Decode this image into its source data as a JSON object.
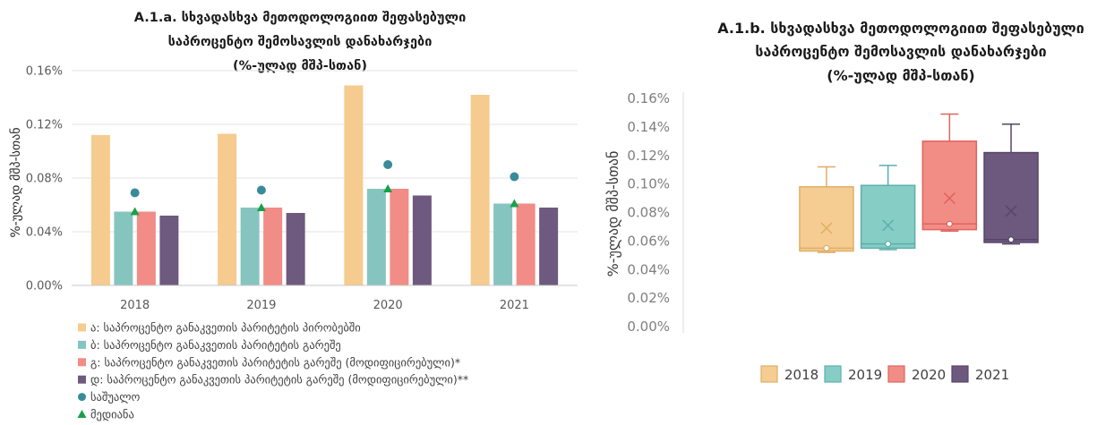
{
  "chart_data": [
    {
      "type": "bar",
      "title": [
        "A.1.a. სხვადასხვა მეთოდოლოგიით შეფასებული",
        "საპროცენტო შემოსავლის დანახარჯები",
        "(%-ულად მშპ-სთან)"
      ],
      "ylabel": "%-ულად მშპ-სთან",
      "ylim": [
        0,
        0.16
      ],
      "yticks": [
        {
          "value": 0,
          "label": "0.00%"
        },
        {
          "value": 0.04,
          "label": "0.04%"
        },
        {
          "value": 0.08,
          "label": "0.08%"
        },
        {
          "value": 0.12,
          "label": "0.12%"
        },
        {
          "value": 0.16,
          "label": "0.16%"
        }
      ],
      "grid": true,
      "legend": "bottom-left",
      "categories": [
        "2018",
        "2019",
        "2020",
        "2021"
      ],
      "series": [
        {
          "name": "ა: საპროცენტო განაკვეთის პარიტეტის პირობებში",
          "color": "#f5cb8f",
          "values": [
            0.112,
            0.113,
            0.149,
            0.142
          ]
        },
        {
          "name": "ბ: საპროცენტო განაკვეთის პარიტეტის გარეშე",
          "color": "#86c5bf",
          "values": [
            0.055,
            0.058,
            0.072,
            0.061
          ]
        },
        {
          "name": "გ: საპროცენტო განაკვეთის პარიტეტის გარეშე (მოდიფიცირებული)*",
          "color": "#f28c86",
          "values": [
            0.055,
            0.058,
            0.072,
            0.061
          ]
        },
        {
          "name": "დ: საპროცენტო განაკვეთის პარიტეტის გარეშე (მოდიფიცირებული)**",
          "color": "#6e5a7e",
          "values": [
            0.052,
            0.054,
            0.067,
            0.058
          ]
        }
      ],
      "markers": [
        {
          "name": "საშუალო",
          "shape": "circle",
          "color": "#3a8b99",
          "values": [
            0.069,
            0.071,
            0.09,
            0.081
          ]
        },
        {
          "name": "მედიანა",
          "shape": "triangle",
          "color": "#18a14b",
          "values": [
            0.055,
            0.058,
            0.072,
            0.061
          ]
        }
      ]
    },
    {
      "type": "box",
      "title": [
        "A.1.b. სხვადასხვა მეთოდოლოგიით შეფასებული",
        "საპროცენტო შემოსავლის დანახარჯები",
        "(%-ულად მშპ-სთან)"
      ],
      "ylabel": "%-ულად მშპ-სთან",
      "ylim": [
        0,
        0.16
      ],
      "yticks": [
        {
          "value": 0,
          "label": "0.00%"
        },
        {
          "value": 0.02,
          "label": "0.02%"
        },
        {
          "value": 0.04,
          "label": "0.04%"
        },
        {
          "value": 0.06,
          "label": "0.06%"
        },
        {
          "value": 0.08,
          "label": "0.08%"
        },
        {
          "value": 0.1,
          "label": "0.10%"
        },
        {
          "value": 0.12,
          "label": "0.12%"
        },
        {
          "value": 0.14,
          "label": "0.14%"
        },
        {
          "value": 0.16,
          "label": "0.16%"
        }
      ],
      "grid": false,
      "legend": "bottom",
      "series": [
        {
          "name": "2018",
          "color": "#f5cd92",
          "edge": "#deae66",
          "min": 0.052,
          "q1": 0.053,
          "median": 0.055,
          "q3": 0.098,
          "max": 0.112,
          "mean": 0.069
        },
        {
          "name": "2019",
          "color": "#86cdc6",
          "edge": "#5cb0a9",
          "min": 0.054,
          "q1": 0.055,
          "median": 0.058,
          "q3": 0.099,
          "max": 0.113,
          "mean": 0.071
        },
        {
          "name": "2020",
          "color": "#f28d86",
          "edge": "#df645e",
          "min": 0.067,
          "q1": 0.068,
          "median": 0.072,
          "q3": 0.13,
          "max": 0.149,
          "mean": 0.09
        },
        {
          "name": "2021",
          "color": "#6e597e",
          "edge": "#564568",
          "min": 0.058,
          "q1": 0.059,
          "median": 0.061,
          "q3": 0.122,
          "max": 0.142,
          "mean": 0.081
        }
      ]
    }
  ]
}
